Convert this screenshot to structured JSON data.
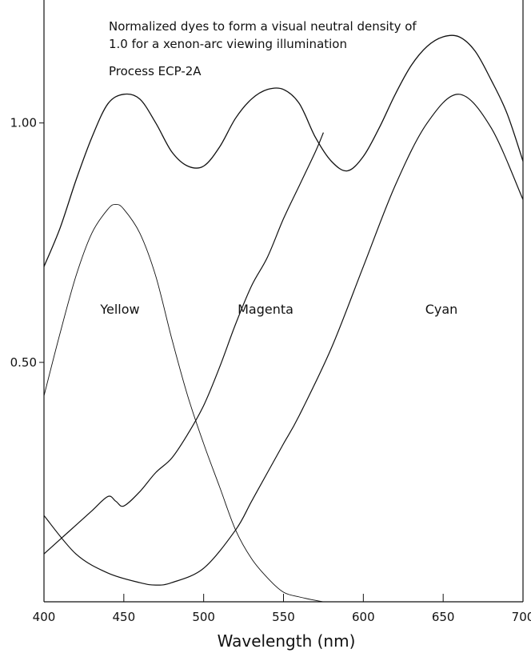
{
  "chart_data": {
    "type": "line",
    "title": "",
    "xlabel": "Wavelength (nm)",
    "ylabel": "",
    "xlim": [
      400,
      700
    ],
    "ylim": [
      0.0,
      1.2
    ],
    "grid": false,
    "x_ticks": [
      400,
      450,
      500,
      550,
      600,
      650,
      700
    ],
    "x_tick_labels": [
      "400",
      "450",
      "500",
      "550",
      "600",
      "650",
      "700"
    ],
    "y_ticks": [
      0.5,
      1.0
    ],
    "y_tick_labels": [
      "0.50",
      "1.00"
    ],
    "annotations": [
      "Normalized dyes to form a visual neutral density of",
      "1.0 for a xenon-arc viewing illumination",
      "Process ECP-2A"
    ],
    "series": [
      {
        "name": "Yellow",
        "x": [
          400,
          410,
          420,
          430,
          440,
          445,
          450,
          460,
          470,
          480,
          490,
          500,
          510,
          520,
          530,
          540,
          550,
          560,
          570,
          575
        ],
        "values": [
          0.43,
          0.56,
          0.68,
          0.77,
          0.82,
          0.83,
          0.82,
          0.77,
          0.68,
          0.55,
          0.43,
          0.33,
          0.24,
          0.15,
          0.09,
          0.05,
          0.02,
          0.01,
          0.003,
          0.0
        ]
      },
      {
        "name": "Magenta",
        "x": [
          400,
          420,
          440,
          460,
          470,
          480,
          500,
          520,
          530,
          540,
          550,
          560,
          580,
          600,
          620,
          640,
          660,
          680,
          700
        ],
        "values": [
          0.18,
          0.1,
          0.06,
          0.04,
          0.035,
          0.04,
          0.07,
          0.15,
          0.21,
          0.27,
          0.33,
          0.39,
          0.53,
          0.7,
          0.87,
          1.0,
          1.06,
          0.99,
          0.84
        ]
      },
      {
        "name": "Cyan",
        "x": [
          400,
          410,
          420,
          430,
          440,
          445,
          450,
          460,
          470,
          480,
          490,
          500,
          510,
          520,
          530,
          540,
          550,
          560,
          570,
          575
        ],
        "values": [
          0.1,
          0.13,
          0.16,
          0.19,
          0.22,
          0.21,
          0.2,
          0.23,
          0.27,
          0.3,
          0.35,
          0.41,
          0.49,
          0.58,
          0.66,
          0.72,
          0.8,
          0.87,
          0.94,
          0.98
        ]
      },
      {
        "name": "",
        "x": [
          400,
          410,
          420,
          430,
          440,
          450,
          460,
          470,
          480,
          490,
          500,
          510,
          520,
          530,
          540,
          550,
          560,
          570,
          580,
          590,
          600,
          610,
          620,
          630,
          640,
          650,
          660,
          670,
          680,
          690,
          700
        ],
        "values": [
          0.7,
          0.78,
          0.88,
          0.97,
          1.04,
          1.06,
          1.05,
          1.0,
          0.94,
          0.91,
          0.91,
          0.95,
          1.01,
          1.05,
          1.07,
          1.07,
          1.04,
          0.97,
          0.92,
          0.9,
          0.93,
          0.99,
          1.06,
          1.12,
          1.16,
          1.18,
          1.18,
          1.15,
          1.09,
          1.02,
          0.92
        ]
      }
    ]
  }
}
